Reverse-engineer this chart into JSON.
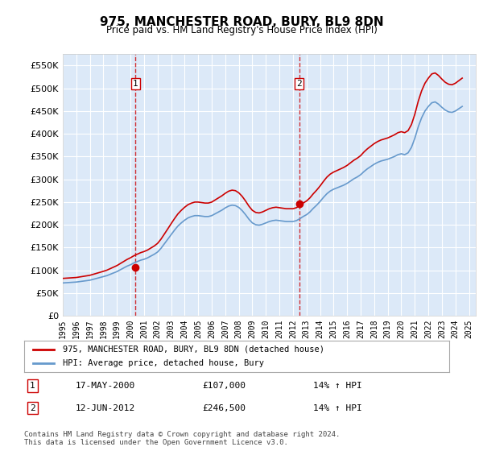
{
  "title": "975, MANCHESTER ROAD, BURY, BL9 8DN",
  "subtitle": "Price paid vs. HM Land Registry's House Price Index (HPI)",
  "ylabel_ticks": [
    "£0",
    "£50K",
    "£100K",
    "£150K",
    "£200K",
    "£250K",
    "£300K",
    "£350K",
    "£400K",
    "£450K",
    "£500K",
    "£550K"
  ],
  "ytick_values": [
    0,
    50000,
    100000,
    150000,
    200000,
    250000,
    300000,
    350000,
    400000,
    450000,
    500000,
    550000
  ],
  "ylim": [
    0,
    575000
  ],
  "xlim_start": 1995.0,
  "xlim_end": 2025.5,
  "legend_line1": "975, MANCHESTER ROAD, BURY, BL9 8DN (detached house)",
  "legend_line2": "HPI: Average price, detached house, Bury",
  "label1_num": "1",
  "label1_date": "17-MAY-2000",
  "label1_price": "£107,000",
  "label1_hpi": "14% ↑ HPI",
  "label2_num": "2",
  "label2_date": "12-JUN-2012",
  "label2_price": "£246,500",
  "label2_hpi": "14% ↑ HPI",
  "footnote": "Contains HM Land Registry data © Crown copyright and database right 2024.\nThis data is licensed under the Open Government Licence v3.0.",
  "sale1_x": 2000.38,
  "sale1_y": 107000,
  "sale2_x": 2012.45,
  "sale2_y": 246500,
  "vline1_x": 2000.38,
  "vline2_x": 2012.45,
  "background_color": "#dce9f8",
  "line_color_red": "#cc0000",
  "line_color_blue": "#6699cc",
  "grid_color": "#ffffff",
  "hpi_data_x": [
    1995.0,
    1995.25,
    1995.5,
    1995.75,
    1996.0,
    1996.25,
    1996.5,
    1996.75,
    1997.0,
    1997.25,
    1997.5,
    1997.75,
    1998.0,
    1998.25,
    1998.5,
    1998.75,
    1999.0,
    1999.25,
    1999.5,
    1999.75,
    2000.0,
    2000.25,
    2000.5,
    2000.75,
    2001.0,
    2001.25,
    2001.5,
    2001.75,
    2002.0,
    2002.25,
    2002.5,
    2002.75,
    2003.0,
    2003.25,
    2003.5,
    2003.75,
    2004.0,
    2004.25,
    2004.5,
    2004.75,
    2005.0,
    2005.25,
    2005.5,
    2005.75,
    2006.0,
    2006.25,
    2006.5,
    2006.75,
    2007.0,
    2007.25,
    2007.5,
    2007.75,
    2008.0,
    2008.25,
    2008.5,
    2008.75,
    2009.0,
    2009.25,
    2009.5,
    2009.75,
    2010.0,
    2010.25,
    2010.5,
    2010.75,
    2011.0,
    2011.25,
    2011.5,
    2011.75,
    2012.0,
    2012.25,
    2012.5,
    2012.75,
    2013.0,
    2013.25,
    2013.5,
    2013.75,
    2014.0,
    2014.25,
    2014.5,
    2014.75,
    2015.0,
    2015.25,
    2015.5,
    2015.75,
    2016.0,
    2016.25,
    2016.5,
    2016.75,
    2017.0,
    2017.25,
    2017.5,
    2017.75,
    2018.0,
    2018.25,
    2018.5,
    2018.75,
    2019.0,
    2019.25,
    2019.5,
    2019.75,
    2020.0,
    2020.25,
    2020.5,
    2020.75,
    2021.0,
    2021.25,
    2021.5,
    2021.75,
    2022.0,
    2022.25,
    2022.5,
    2022.75,
    2023.0,
    2023.25,
    2023.5,
    2023.75,
    2024.0,
    2024.25,
    2024.5
  ],
  "hpi_data_y": [
    72000,
    72500,
    73000,
    73500,
    74000,
    75000,
    76000,
    77000,
    78000,
    80000,
    82000,
    84000,
    86000,
    88000,
    91000,
    94000,
    97000,
    101000,
    105000,
    109000,
    112000,
    116000,
    119000,
    122000,
    124000,
    127000,
    131000,
    135000,
    140000,
    148000,
    158000,
    168000,
    178000,
    188000,
    197000,
    204000,
    210000,
    215000,
    218000,
    220000,
    220000,
    219000,
    218000,
    218000,
    220000,
    224000,
    228000,
    232000,
    237000,
    241000,
    243000,
    242000,
    238000,
    231000,
    222000,
    212000,
    204000,
    200000,
    199000,
    201000,
    204000,
    207000,
    209000,
    210000,
    209000,
    208000,
    207000,
    207000,
    207000,
    209000,
    213000,
    218000,
    222000,
    228000,
    236000,
    243000,
    251000,
    260000,
    268000,
    274000,
    278000,
    281000,
    284000,
    287000,
    291000,
    296000,
    301000,
    305000,
    310000,
    317000,
    323000,
    328000,
    333000,
    337000,
    340000,
    342000,
    344000,
    347000,
    350000,
    354000,
    356000,
    354000,
    358000,
    370000,
    390000,
    415000,
    435000,
    450000,
    460000,
    468000,
    470000,
    465000,
    458000,
    452000,
    448000,
    447000,
    450000,
    455000,
    460000
  ],
  "red_data_x": [
    1995.0,
    1995.25,
    1995.5,
    1995.75,
    1996.0,
    1996.25,
    1996.5,
    1996.75,
    1997.0,
    1997.25,
    1997.5,
    1997.75,
    1998.0,
    1998.25,
    1998.5,
    1998.75,
    1999.0,
    1999.25,
    1999.5,
    1999.75,
    2000.0,
    2000.25,
    2000.5,
    2000.75,
    2001.0,
    2001.25,
    2001.5,
    2001.75,
    2002.0,
    2002.25,
    2002.5,
    2002.75,
    2003.0,
    2003.25,
    2003.5,
    2003.75,
    2004.0,
    2004.25,
    2004.5,
    2004.75,
    2005.0,
    2005.25,
    2005.5,
    2005.75,
    2006.0,
    2006.25,
    2006.5,
    2006.75,
    2007.0,
    2007.25,
    2007.5,
    2007.75,
    2008.0,
    2008.25,
    2008.5,
    2008.75,
    2009.0,
    2009.25,
    2009.5,
    2009.75,
    2010.0,
    2010.25,
    2010.5,
    2010.75,
    2011.0,
    2011.25,
    2011.5,
    2011.75,
    2012.0,
    2012.25,
    2012.5,
    2012.75,
    2013.0,
    2013.25,
    2013.5,
    2013.75,
    2014.0,
    2014.25,
    2014.5,
    2014.75,
    2015.0,
    2015.25,
    2015.5,
    2015.75,
    2016.0,
    2016.25,
    2016.5,
    2016.75,
    2017.0,
    2017.25,
    2017.5,
    2017.75,
    2018.0,
    2018.25,
    2018.5,
    2018.75,
    2019.0,
    2019.25,
    2019.5,
    2019.75,
    2020.0,
    2020.25,
    2020.5,
    2020.75,
    2021.0,
    2021.25,
    2021.5,
    2021.75,
    2022.0,
    2022.25,
    2022.5,
    2022.75,
    2023.0,
    2023.25,
    2023.5,
    2023.75,
    2024.0,
    2024.25,
    2024.5
  ],
  "red_data_y": [
    82000,
    82500,
    83000,
    83500,
    84000,
    85200,
    86400,
    87600,
    88800,
    91000,
    93200,
    95400,
    97600,
    100000,
    103400,
    106800,
    110200,
    114700,
    119200,
    123700,
    127400,
    131800,
    135200,
    138600,
    141000,
    144200,
    148700,
    153200,
    159000,
    168200,
    179400,
    190700,
    202200,
    213400,
    223700,
    231600,
    238400,
    244100,
    247400,
    249800,
    249800,
    248700,
    247600,
    247600,
    249800,
    254400,
    259000,
    263600,
    269100,
    273700,
    276000,
    274900,
    270100,
    262300,
    252100,
    240700,
    231600,
    227000,
    225900,
    228100,
    231600,
    235200,
    237400,
    238500,
    237400,
    236300,
    235200,
    235200,
    235200,
    237400,
    241900,
    247600,
    252100,
    259000,
    268000,
    276000,
    285000,
    295200,
    304400,
    311200,
    315700,
    319100,
    322500,
    326000,
    330400,
    336100,
    341800,
    346300,
    351900,
    360100,
    366900,
    372600,
    378300,
    382800,
    386200,
    388500,
    390800,
    394200,
    397700,
    402300,
    404500,
    402300,
    406800,
    420200,
    442800,
    471200,
    494200,
    511100,
    522200,
    531400,
    533600,
    528000,
    520000,
    513000,
    508800,
    507700,
    511100,
    516700,
    522200
  ],
  "plot_bg": "#dce9f8",
  "fig_bg": "#ffffff"
}
